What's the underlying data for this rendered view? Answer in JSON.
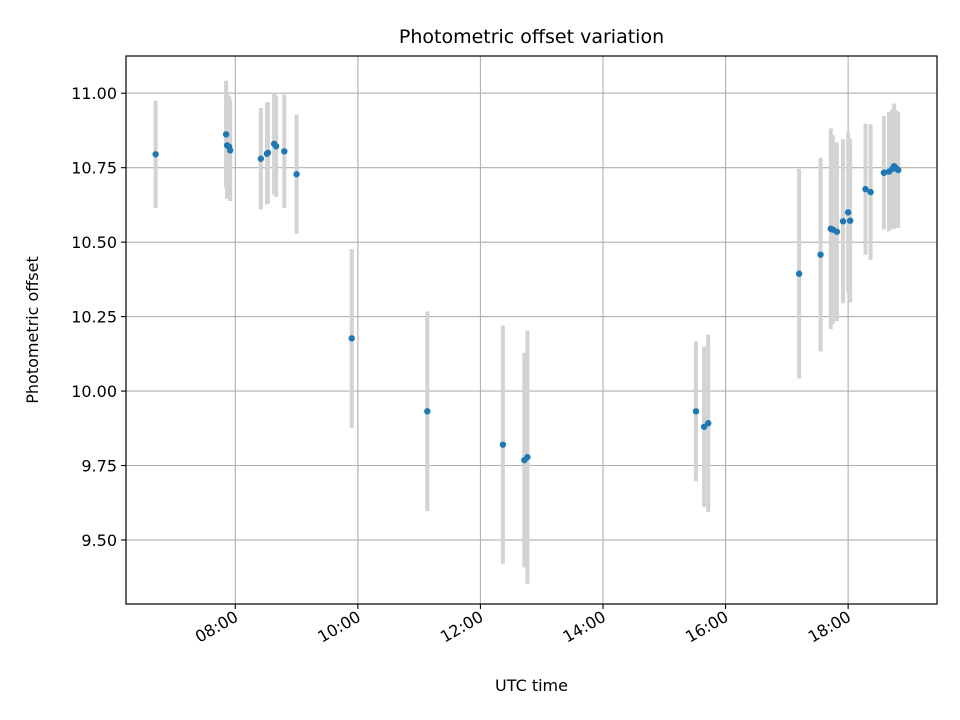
{
  "chart_data": {
    "type": "scatter",
    "title": "Photometric offset variation",
    "xlabel": "UTC time",
    "ylabel": "Photometric offset",
    "x_axis_type": "time",
    "xlim": [
      "06:13",
      "19:27"
    ],
    "ylim": [
      9.285,
      11.125
    ],
    "grid": true,
    "x_ticks": [
      "08:00",
      "10:00",
      "12:00",
      "14:00",
      "16:00",
      "18:00"
    ],
    "y_ticks": [
      "9.50",
      "9.75",
      "10.00",
      "10.25",
      "10.50",
      "10.75",
      "11.00"
    ],
    "colors": {
      "point": "#1f77b4",
      "errorbar": "#d3d3d3",
      "grid": "#b0b0b0"
    },
    "points": [
      {
        "x": "06:42",
        "y": 10.795,
        "err": 0.18
      },
      {
        "x": "07:51",
        "y": 10.862,
        "err": 0.18
      },
      {
        "x": "07:52",
        "y": 10.825,
        "err": 0.18
      },
      {
        "x": "07:54",
        "y": 10.82,
        "err": 0.17
      },
      {
        "x": "07:55",
        "y": 10.808,
        "err": 0.17
      },
      {
        "x": "08:25",
        "y": 10.78,
        "err": 0.17
      },
      {
        "x": "08:31",
        "y": 10.797,
        "err": 0.17
      },
      {
        "x": "08:32",
        "y": 10.8,
        "err": 0.17
      },
      {
        "x": "08:38",
        "y": 10.83,
        "err": 0.17
      },
      {
        "x": "08:40",
        "y": 10.822,
        "err": 0.17
      },
      {
        "x": "08:48",
        "y": 10.805,
        "err": 0.19
      },
      {
        "x": "09:00",
        "y": 10.728,
        "err": 0.2
      },
      {
        "x": "09:54",
        "y": 10.177,
        "err": 0.3
      },
      {
        "x": "11:08",
        "y": 9.932,
        "err": 0.335
      },
      {
        "x": "12:22",
        "y": 9.82,
        "err": 0.4
      },
      {
        "x": "12:43",
        "y": 9.768,
        "err": 0.36
      },
      {
        "x": "12:46",
        "y": 9.778,
        "err": 0.425
      },
      {
        "x": "15:31",
        "y": 9.932,
        "err": 0.235
      },
      {
        "x": "15:39",
        "y": 9.88,
        "err": 0.27
      },
      {
        "x": "15:43",
        "y": 9.892,
        "err": 0.298
      },
      {
        "x": "17:12",
        "y": 10.394,
        "err": 0.352
      },
      {
        "x": "17:33",
        "y": 10.458,
        "err": 0.325
      },
      {
        "x": "17:43",
        "y": 10.545,
        "err": 0.337
      },
      {
        "x": "17:45",
        "y": 10.542,
        "err": 0.317
      },
      {
        "x": "17:49",
        "y": 10.535,
        "err": 0.3
      },
      {
        "x": "17:55",
        "y": 10.57,
        "err": 0.275
      },
      {
        "x": "18:00",
        "y": 10.6,
        "err": 0.27
      },
      {
        "x": "18:02",
        "y": 10.572,
        "err": 0.275
      },
      {
        "x": "18:17",
        "y": 10.678,
        "err": 0.22
      },
      {
        "x": "18:22",
        "y": 10.668,
        "err": 0.228
      },
      {
        "x": "18:35",
        "y": 10.733,
        "err": 0.19
      },
      {
        "x": "18:40",
        "y": 10.737,
        "err": 0.2
      },
      {
        "x": "18:43",
        "y": 10.745,
        "err": 0.2
      },
      {
        "x": "18:45",
        "y": 10.755,
        "err": 0.21
      },
      {
        "x": "18:47",
        "y": 10.748,
        "err": 0.195
      },
      {
        "x": "18:49",
        "y": 10.742,
        "err": 0.195
      }
    ]
  }
}
